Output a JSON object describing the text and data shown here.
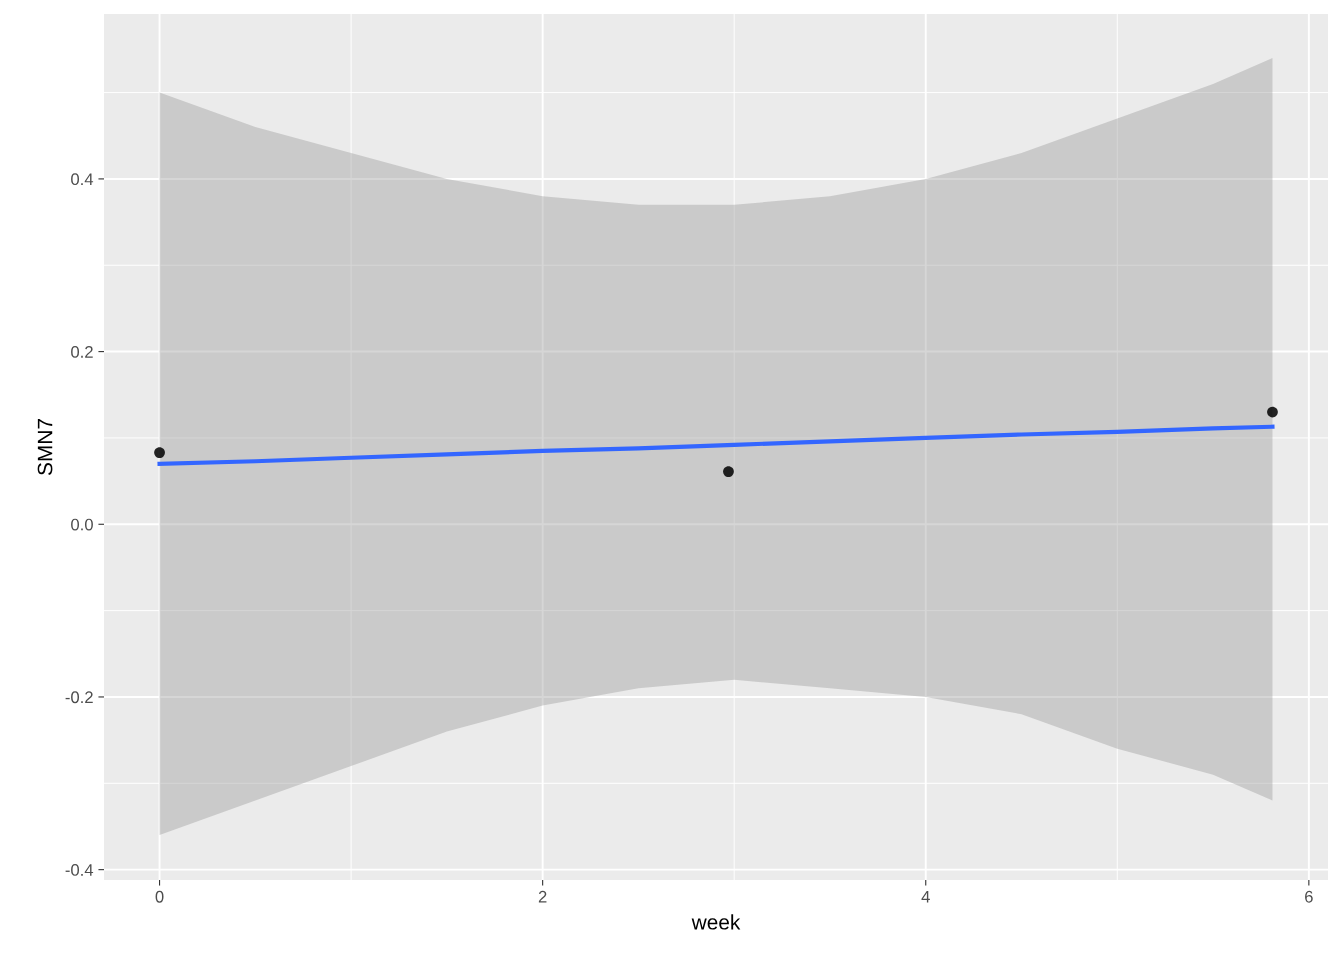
{
  "chart_data": {
    "type": "scatter",
    "xlabel": "week",
    "ylabel": "SMN7",
    "series": [
      {
        "type": "line",
        "color": "#3366ff",
        "x": [
          0,
          0.5,
          1,
          1.5,
          2,
          2.5,
          3,
          3.5,
          4,
          4.5,
          5,
          5.5,
          5.81
        ],
        "values": [
          0.07,
          0.073,
          0.077,
          0.081,
          0.085,
          0.088,
          0.092,
          0.096,
          0.1,
          0.104,
          0.107,
          0.111,
          0.113
        ],
        "lower": [
          -0.36,
          -0.32,
          -0.28,
          -0.24,
          -0.21,
          -0.19,
          -0.18,
          -0.19,
          -0.2,
          -0.22,
          -0.26,
          -0.29,
          -0.32
        ],
        "upper": [
          0.5,
          0.46,
          0.43,
          0.4,
          0.38,
          0.37,
          0.37,
          0.38,
          0.4,
          0.43,
          0.47,
          0.51,
          0.54
        ]
      },
      {
        "color": "#000000",
        "x": [
          0,
          2.97,
          5.81
        ],
        "values": [
          0.083,
          0.061,
          0.13
        ]
      }
    ],
    "xlim": [
      -0.29,
      6.1
    ],
    "ylim": [
      -0.412,
      0.591
    ],
    "xticks": [
      0,
      2,
      4,
      6
    ],
    "yticks": [
      -0.4,
      -0.2,
      {
        "value": 0,
        "label": "0.0"
      },
      0.2,
      0.4
    ],
    "grid": true
  }
}
